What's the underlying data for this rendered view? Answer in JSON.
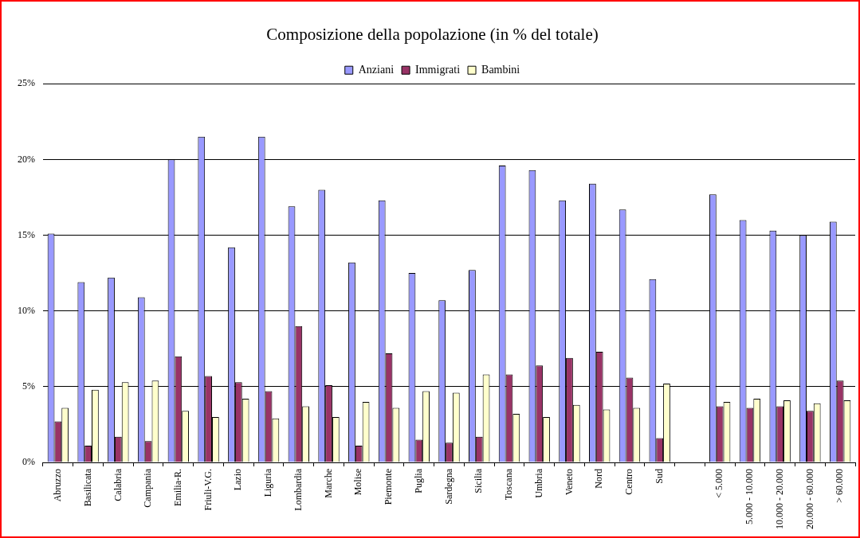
{
  "chart_data": {
    "type": "bar",
    "title": "Composizione della popolazione (in % del totale)",
    "categories": [
      "Abruzzo",
      "Basilicata",
      "Calabria",
      "Campania",
      "Emilia-R.",
      "Friuli-V.G.",
      "Lazio",
      "Liguria",
      "Lombardia",
      "Marche",
      "Molise",
      "Piemonte",
      "Puglia",
      "Sardegna",
      "Sicilia",
      "Toscana",
      "Umbria",
      "Veneto",
      "Nord",
      "Centro",
      "Sud",
      null,
      "< 5.000",
      "5.000 - 10.000",
      "10.000 - 20.000",
      "20.000 - 60.000",
      "> 60.000"
    ],
    "series": [
      {
        "name": "Anziani",
        "color": "#9999ff",
        "values": [
          15.1,
          11.9,
          12.2,
          10.9,
          20.0,
          21.5,
          14.2,
          21.5,
          16.9,
          18.0,
          13.2,
          17.3,
          12.5,
          10.7,
          12.7,
          19.6,
          19.3,
          17.3,
          18.4,
          16.7,
          12.1,
          null,
          17.7,
          16.0,
          15.3,
          15.0,
          15.9
        ]
      },
      {
        "name": "Immigrati",
        "color": "#993366",
        "values": [
          2.7,
          1.1,
          1.7,
          1.4,
          7.0,
          5.7,
          5.3,
          4.7,
          9.0,
          5.1,
          1.1,
          7.2,
          1.5,
          1.3,
          1.7,
          5.8,
          6.4,
          6.9,
          7.3,
          5.6,
          1.6,
          null,
          3.7,
          3.6,
          3.7,
          3.4,
          5.4
        ]
      },
      {
        "name": "Bambini",
        "color": "#ffffcc",
        "values": [
          3.6,
          4.8,
          5.3,
          5.4,
          3.4,
          3.0,
          4.2,
          2.9,
          3.7,
          3.0,
          4.0,
          3.6,
          4.7,
          4.6,
          5.8,
          3.2,
          3.0,
          3.8,
          3.5,
          3.6,
          5.2,
          null,
          4.0,
          4.2,
          4.1,
          3.9,
          4.1
        ]
      }
    ],
    "ylim": [
      0,
      25
    ],
    "yticks": [
      {
        "value": 0,
        "label": "0%"
      },
      {
        "value": 5,
        "label": "5%"
      },
      {
        "value": 10,
        "label": "10%"
      },
      {
        "value": 15,
        "label": "15%"
      },
      {
        "value": 20,
        "label": "20%"
      },
      {
        "value": 25,
        "label": "25%"
      }
    ],
    "grid": "y",
    "legend": "top"
  }
}
